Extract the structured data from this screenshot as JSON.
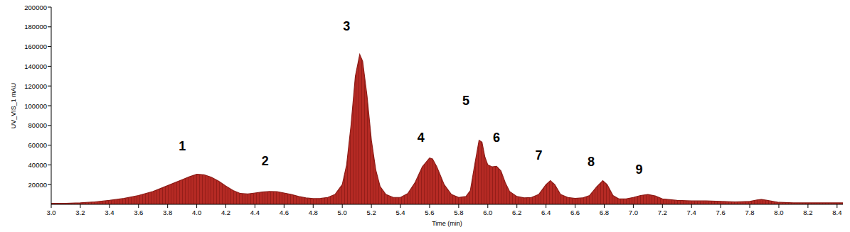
{
  "chart_data": {
    "type": "area",
    "x_label": "Time (min)",
    "y_label": "UV_VIS_1 mAU",
    "color": "#b52a24",
    "xlim": [
      3.0,
      8.44
    ],
    "ylim": [
      0,
      200000
    ],
    "xticks": [
      {
        "value": 3.0,
        "label": "3.0"
      },
      3.2,
      3.4,
      3.6,
      3.8,
      {
        "value": 4.0,
        "label": "4.0"
      },
      4.2,
      4.4,
      4.6,
      4.8,
      {
        "value": 5.0,
        "label": "5.0"
      },
      5.2,
      5.4,
      5.6,
      5.8,
      {
        "value": 6.0,
        "label": "6.0"
      },
      6.2,
      6.4,
      6.6,
      6.8,
      {
        "value": 7.0,
        "label": "7.0"
      },
      7.2,
      7.4,
      7.6,
      7.8,
      {
        "value": 8.0,
        "label": "8.0"
      },
      8.2,
      8.4
    ],
    "yticks": [
      20000,
      40000,
      60000,
      80000,
      100000,
      120000,
      140000,
      160000,
      180000,
      200000
    ],
    "grid": false,
    "x": [
      3.0,
      3.1,
      3.2,
      3.3,
      3.4,
      3.5,
      3.6,
      3.7,
      3.8,
      3.9,
      3.95,
      4.0,
      4.05,
      4.1,
      4.15,
      4.2,
      4.25,
      4.3,
      4.35,
      4.4,
      4.45,
      4.5,
      4.55,
      4.6,
      4.65,
      4.7,
      4.75,
      4.8,
      4.85,
      4.9,
      4.95,
      5.0,
      5.03,
      5.06,
      5.09,
      5.12,
      5.14,
      5.17,
      5.2,
      5.23,
      5.26,
      5.3,
      5.35,
      5.4,
      5.45,
      5.5,
      5.55,
      5.6,
      5.62,
      5.65,
      5.7,
      5.75,
      5.8,
      5.85,
      5.88,
      5.91,
      5.94,
      5.96,
      5.98,
      6.0,
      6.03,
      6.06,
      6.09,
      6.12,
      6.15,
      6.2,
      6.25,
      6.3,
      6.35,
      6.4,
      6.43,
      6.46,
      6.5,
      6.55,
      6.6,
      6.65,
      6.7,
      6.75,
      6.79,
      6.82,
      6.86,
      6.9,
      6.95,
      7.0,
      7.05,
      7.1,
      7.15,
      7.2,
      7.3,
      7.4,
      7.5,
      7.6,
      7.7,
      7.8,
      7.85,
      7.88,
      7.92,
      8.0,
      8.1,
      8.2,
      8.3,
      8.44
    ],
    "values": [
      1000,
      1000,
      1500,
      2500,
      4000,
      6000,
      9000,
      13000,
      19000,
      25000,
      28000,
      30500,
      30000,
      27500,
      23500,
      18500,
      14000,
      11000,
      10500,
      11500,
      12500,
      13000,
      12800,
      11500,
      10000,
      8000,
      6500,
      5800,
      6000,
      7000,
      10000,
      20000,
      40000,
      80000,
      130000,
      152000,
      145000,
      110000,
      65000,
      35000,
      18000,
      10000,
      7000,
      7000,
      11000,
      22000,
      38000,
      47000,
      46000,
      38000,
      20000,
      10000,
      7000,
      8000,
      14000,
      40000,
      65000,
      63000,
      48000,
      40000,
      38000,
      38500,
      34000,
      22000,
      13000,
      8000,
      6500,
      7000,
      10000,
      20000,
      24000,
      20000,
      10000,
      7000,
      6000,
      6500,
      9000,
      18000,
      24000,
      20000,
      9000,
      5500,
      5500,
      7000,
      9000,
      10000,
      8500,
      5500,
      4000,
      3500,
      3500,
      3000,
      2500,
      3000,
      4500,
      5000,
      4000,
      2000,
      1500,
      1500,
      1500,
      1500
    ],
    "annotations": [
      {
        "text": "1",
        "x": 3.9,
        "y": 58800
      },
      {
        "text": "2",
        "x": 4.47,
        "y": 43700
      },
      {
        "text": "3",
        "x": 5.03,
        "y": 180600
      },
      {
        "text": "4",
        "x": 5.54,
        "y": 67400
      },
      {
        "text": "5",
        "x": 5.85,
        "y": 104700
      },
      {
        "text": "6",
        "x": 6.06,
        "y": 67400
      },
      {
        "text": "7",
        "x": 6.35,
        "y": 49500
      },
      {
        "text": "8",
        "x": 6.71,
        "y": 43000
      },
      {
        "text": "9",
        "x": 7.04,
        "y": 35100
      }
    ]
  }
}
